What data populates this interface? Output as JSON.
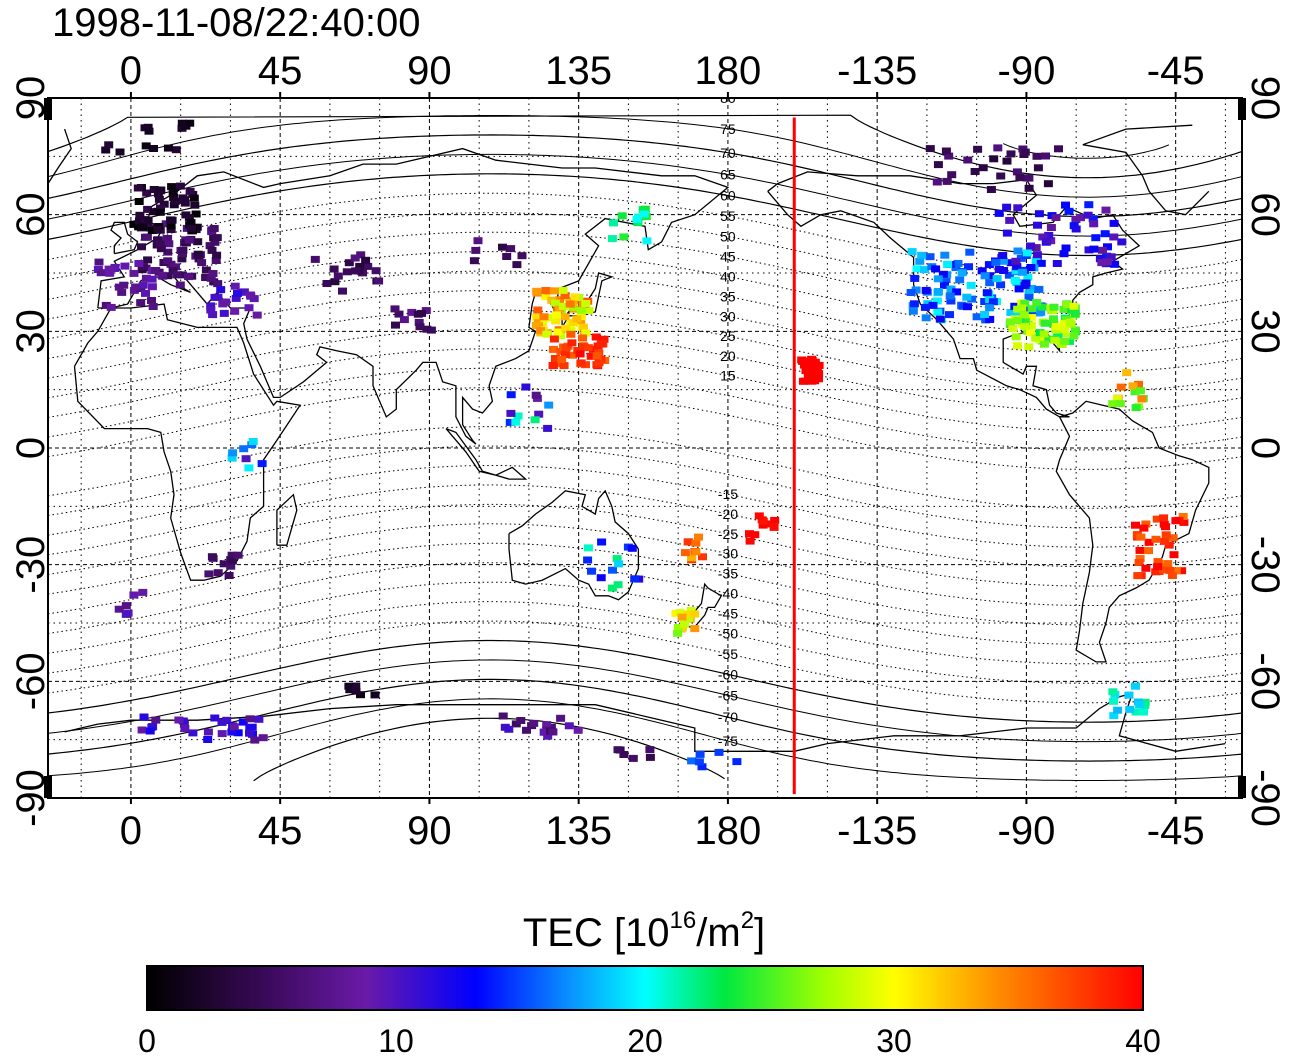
{
  "timestamp": "1998-11-08/22:40:00",
  "map": {
    "lon_ticks": [
      "0",
      "45",
      "90",
      "135",
      "180",
      "-135",
      "-90",
      "-45"
    ],
    "lat_ticks": [
      "90",
      "60",
      "30",
      "0",
      "-30",
      "-60",
      "-90"
    ],
    "lon_range": [
      -25,
      335
    ],
    "lat_range": [
      -90,
      90
    ],
    "marker_longitude": 200,
    "magnetic_latitude_labels": [
      "80",
      "75",
      "70",
      "65",
      "60",
      "55",
      "50",
      "45",
      "40",
      "35",
      "30",
      "25",
      "20",
      "15",
      "-15",
      "-20",
      "-25",
      "-30",
      "-35",
      "-40",
      "-45",
      "-50",
      "-55",
      "-60",
      "-65",
      "-70",
      "-75"
    ],
    "accent_color": "#ff0000"
  },
  "colorbar": {
    "title": "TEC  [10",
    "title_sup": "16",
    "title_mid": "/m",
    "title_sup2": "2",
    "title_end": "]",
    "ticks": [
      "0",
      "10",
      "20",
      "30",
      "40"
    ],
    "range": [
      0,
      40
    ],
    "stops": [
      "#000000",
      "#3a0a5a",
      "#6a1aa8",
      "#0000ff",
      "#0a8aff",
      "#00ffff",
      "#00e840",
      "#a0ff00",
      "#ffff00",
      "#ff9000",
      "#ff0000"
    ]
  }
}
